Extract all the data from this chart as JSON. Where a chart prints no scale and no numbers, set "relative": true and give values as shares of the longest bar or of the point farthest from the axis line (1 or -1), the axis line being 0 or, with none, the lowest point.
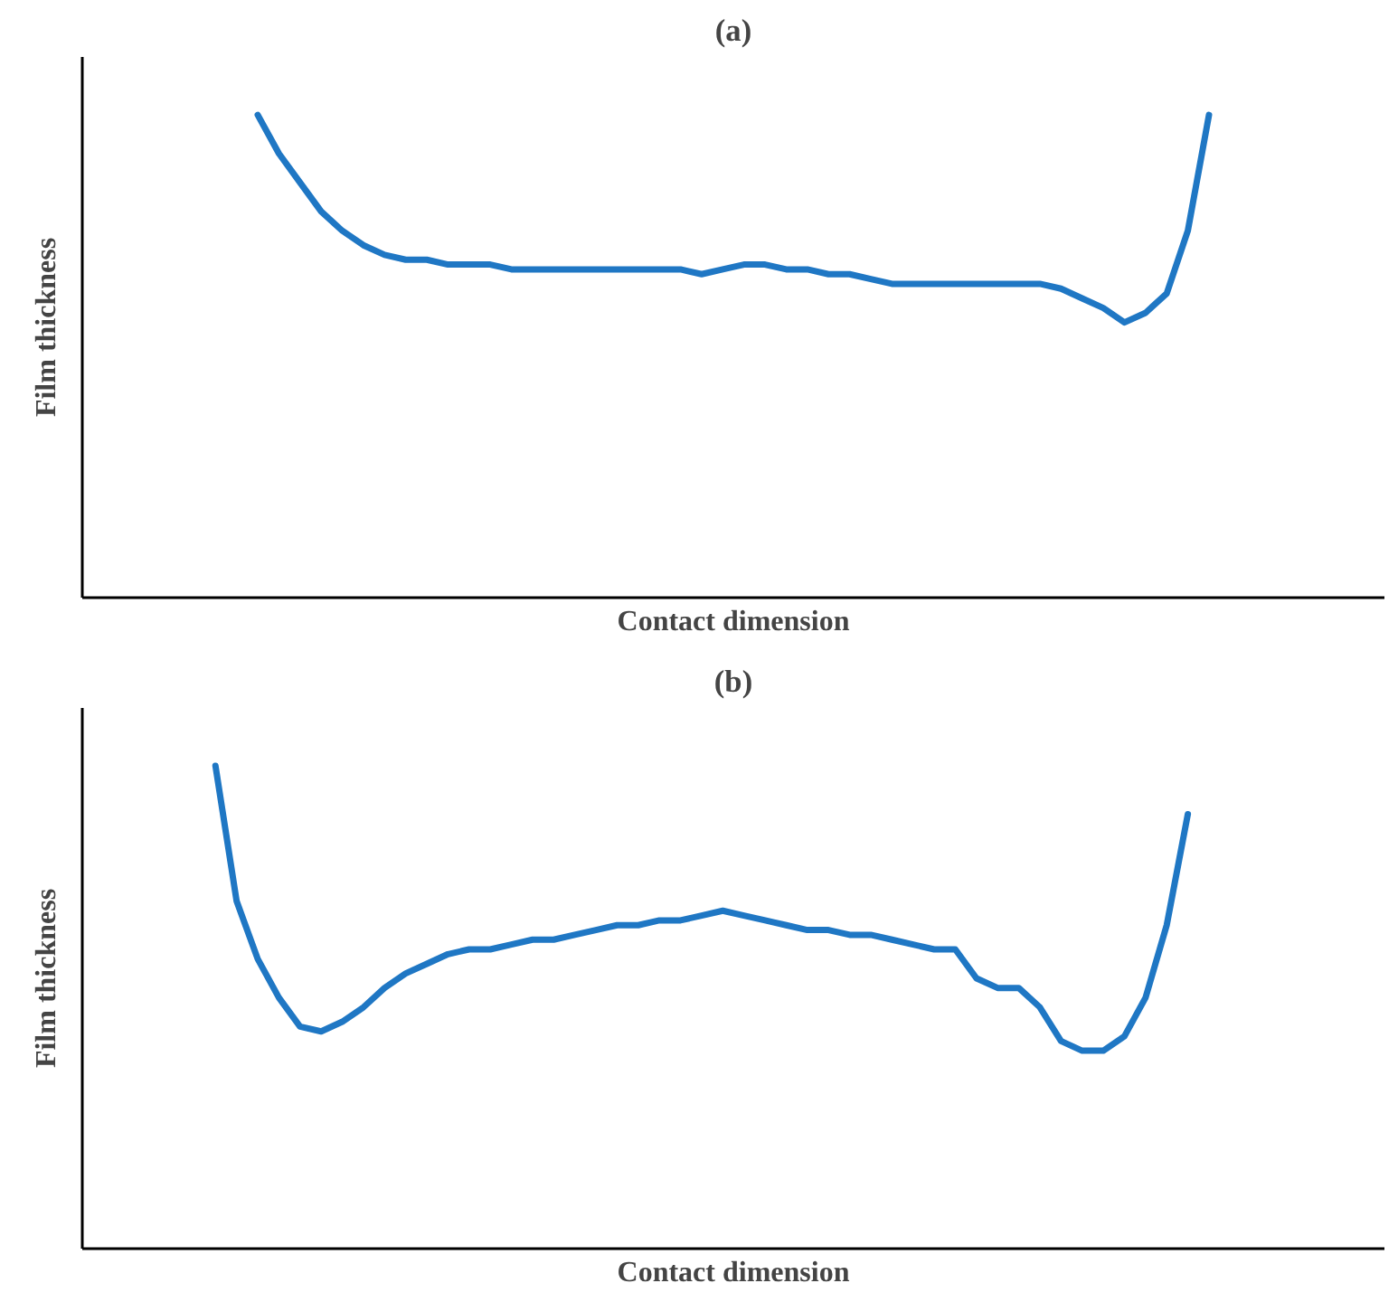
{
  "chart_data": [
    {
      "type": "line",
      "title": "(a)",
      "xlabel": "Contact dimension",
      "ylabel": "Film thickness",
      "relative": true,
      "categories": [
        null,
        null,
        null,
        null,
        null,
        null,
        null,
        null,
        null,
        null,
        null,
        null,
        null,
        null,
        null,
        null,
        null,
        null,
        null,
        null,
        null,
        null,
        null,
        null,
        null,
        null,
        null,
        null,
        null,
        null,
        null,
        null,
        null,
        null,
        null,
        null,
        null,
        null,
        null,
        null,
        null,
        null,
        null,
        null,
        null,
        null,
        null,
        null,
        null,
        null,
        null,
        null,
        null,
        null,
        null,
        null,
        null,
        null,
        null,
        null,
        null
      ],
      "series": [
        {
          "color": "#1f77c4",
          "values": [
            null,
            null,
            null,
            null,
            null,
            null,
            null,
            null,
            1.0,
            0.92,
            0.86,
            0.8,
            0.76,
            0.73,
            0.71,
            0.7,
            0.7,
            0.69,
            0.69,
            0.69,
            0.68,
            0.68,
            0.68,
            0.68,
            0.68,
            0.68,
            0.68,
            0.68,
            0.68,
            0.67,
            0.68,
            0.69,
            0.69,
            0.68,
            0.68,
            0.67,
            0.67,
            0.66,
            0.65,
            0.65,
            0.65,
            0.65,
            0.65,
            0.65,
            0.65,
            0.65,
            0.64,
            0.62,
            0.6,
            0.57,
            0.59,
            0.63,
            0.76,
            1.0,
            null,
            null,
            null,
            null,
            null,
            null,
            null
          ]
        }
      ]
    },
    {
      "type": "line",
      "title": "(b)",
      "xlabel": "Contact dimension",
      "ylabel": "Film thickness",
      "relative": true,
      "categories": [
        null,
        null,
        null,
        null,
        null,
        null,
        null,
        null,
        null,
        null,
        null,
        null,
        null,
        null,
        null,
        null,
        null,
        null,
        null,
        null,
        null,
        null,
        null,
        null,
        null,
        null,
        null,
        null,
        null,
        null,
        null,
        null,
        null,
        null,
        null,
        null,
        null,
        null,
        null,
        null,
        null,
        null,
        null,
        null,
        null,
        null,
        null,
        null,
        null,
        null,
        null,
        null,
        null,
        null,
        null,
        null,
        null,
        null,
        null,
        null,
        null
      ],
      "series": [
        {
          "color": "#1f77c4",
          "values": [
            null,
            null,
            null,
            null,
            null,
            null,
            1.0,
            0.72,
            0.6,
            0.52,
            0.46,
            0.45,
            0.47,
            0.5,
            0.54,
            0.57,
            0.59,
            0.61,
            0.62,
            0.62,
            0.63,
            0.64,
            0.64,
            0.65,
            0.66,
            0.67,
            0.67,
            0.68,
            0.68,
            0.69,
            0.7,
            0.69,
            0.68,
            0.67,
            0.66,
            0.66,
            0.65,
            0.65,
            0.64,
            0.63,
            0.62,
            0.62,
            0.56,
            0.54,
            0.54,
            0.5,
            0.43,
            0.41,
            0.41,
            0.44,
            0.52,
            0.67,
            0.9,
            null,
            null,
            null,
            null,
            null,
            null,
            null,
            null
          ]
        }
      ]
    }
  ]
}
